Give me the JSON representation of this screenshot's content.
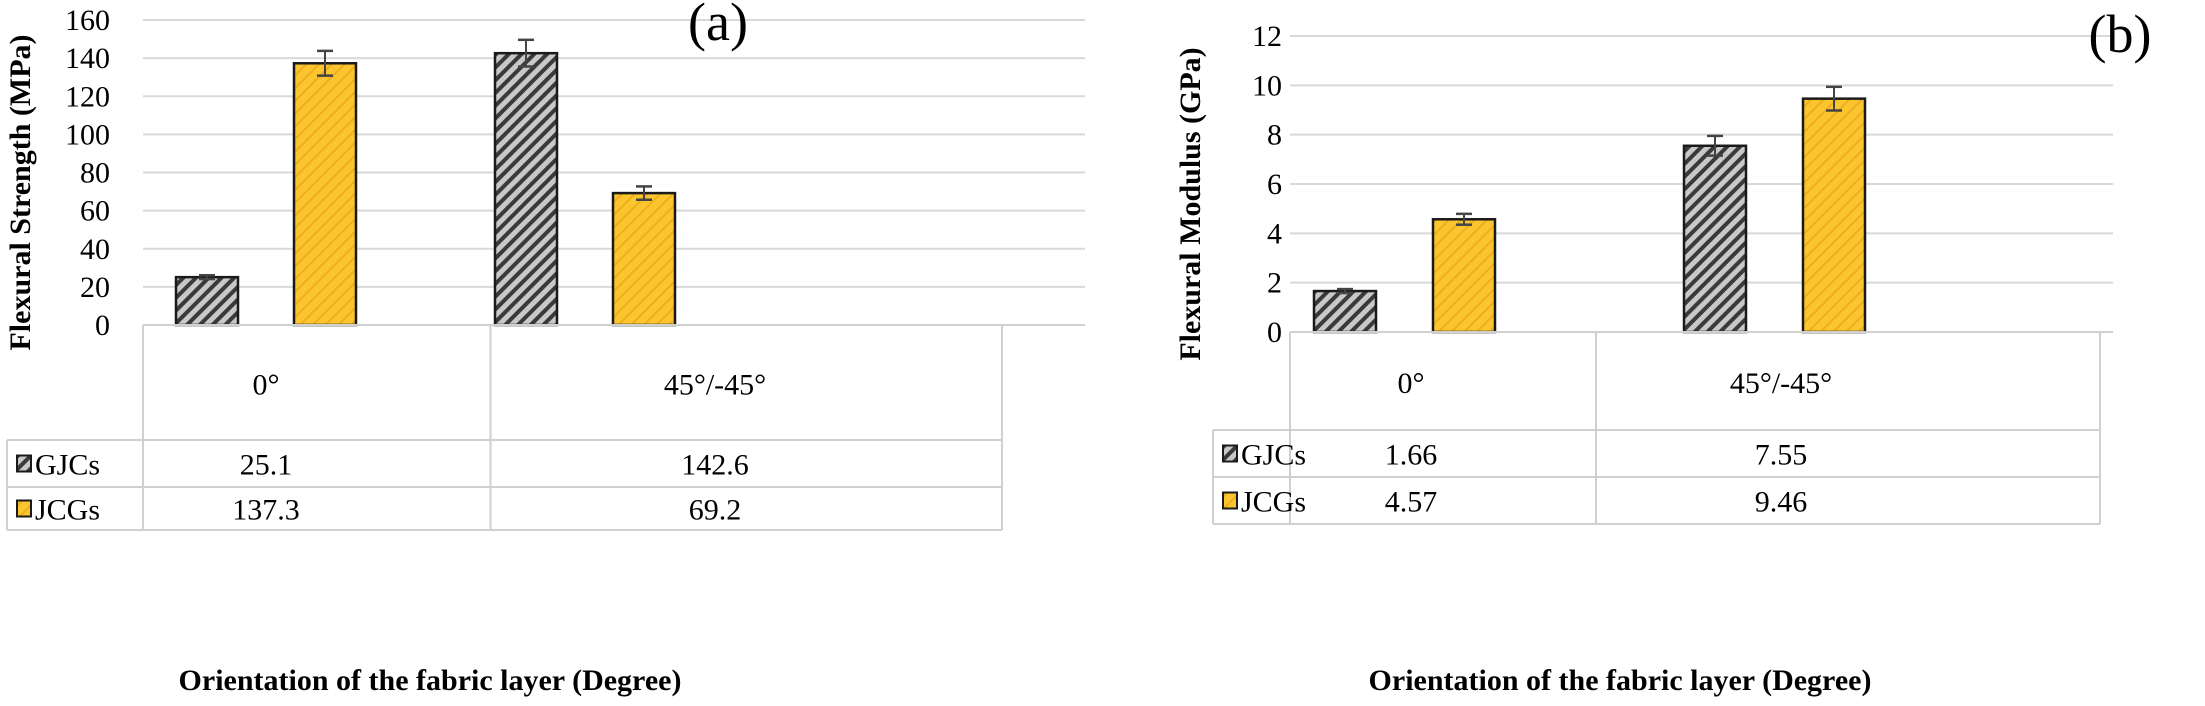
{
  "chart_data": [
    {
      "type": "bar",
      "panel_label": "(a)",
      "ylabel": "Flexural Strength (MPa)",
      "xlabel": "Orientation of the fabric layer (Degree)",
      "categories": [
        "0°",
        "45°/-45°"
      ],
      "ylim": [
        0,
        160
      ],
      "yticks": [
        0,
        20,
        40,
        60,
        80,
        100,
        120,
        140,
        160
      ],
      "grid": true,
      "legend": "data-table",
      "series": [
        {
          "name": "GJCs",
          "values": [
            25.1,
            142.6
          ],
          "value_labels": [
            "25.1",
            "142.6"
          ],
          "errors": [
            1.0,
            7.0
          ],
          "color": "#9a9a9a",
          "pattern": "dark-diagonal-hatch"
        },
        {
          "name": "JCGs",
          "values": [
            137.3,
            69.2
          ],
          "value_labels": [
            "137.3",
            "69.2"
          ],
          "errors": [
            6.5,
            3.5
          ],
          "color": "#f9c22e",
          "pattern": "light-diagonal-hatch"
        }
      ]
    },
    {
      "type": "bar",
      "panel_label": "(b)",
      "ylabel": "Flexural Modulus (GPa)",
      "xlabel": "Orientation of the fabric layer (Degree)",
      "categories": [
        "0°",
        "45°/-45°"
      ],
      "ylim": [
        0,
        12
      ],
      "yticks": [
        0,
        2,
        4,
        6,
        8,
        10,
        12
      ],
      "grid": true,
      "legend": "data-table",
      "series": [
        {
          "name": "GJCs",
          "values": [
            1.66,
            7.55
          ],
          "value_labels": [
            "1.66",
            "7.55"
          ],
          "errors": [
            0.08,
            0.4
          ],
          "color": "#9a9a9a",
          "pattern": "dark-diagonal-hatch"
        },
        {
          "name": "JCGs",
          "values": [
            4.57,
            9.46
          ],
          "value_labels": [
            "4.57",
            "9.46"
          ],
          "errors": [
            0.22,
            0.48
          ],
          "color": "#f9c22e",
          "pattern": "light-diagonal-hatch"
        }
      ]
    }
  ]
}
